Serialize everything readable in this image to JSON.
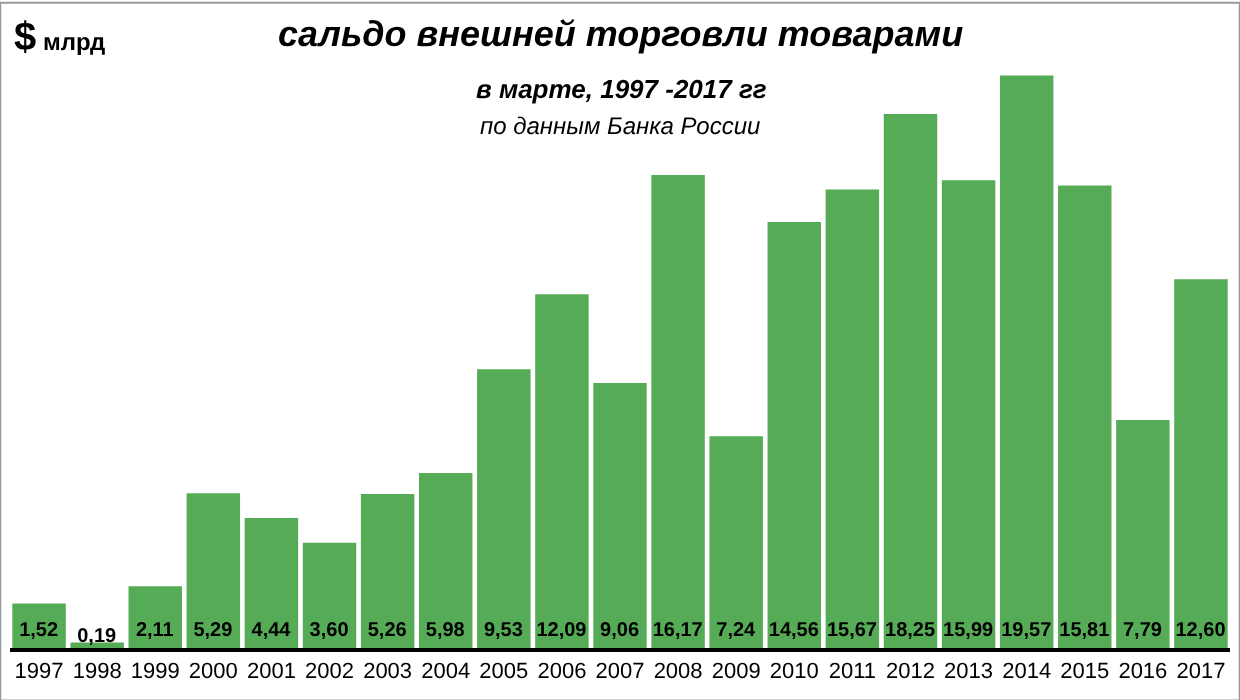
{
  "chart_data": {
    "type": "bar",
    "title": "сальдо внешней торговли товарами",
    "subtitle": "в марте, 1997 -2017 гг",
    "annotations": [
      "по данным Банка России"
    ],
    "ylabel": "$ млрд",
    "categories": [
      "1997",
      "1998",
      "1999",
      "2000",
      "2001",
      "2002",
      "2003",
      "2004",
      "2005",
      "2006",
      "2007",
      "2008",
      "2009",
      "2010",
      "2011",
      "2012",
      "2013",
      "2014",
      "2015",
      "2016",
      "2017"
    ],
    "values": [
      1.52,
      0.19,
      2.11,
      5.29,
      4.44,
      3.6,
      5.26,
      5.98,
      9.53,
      12.09,
      9.06,
      16.17,
      7.24,
      14.56,
      15.67,
      18.25,
      15.99,
      19.57,
      15.81,
      7.79,
      12.6
    ],
    "value_labels": [
      "1,52",
      "0,19",
      "2,11",
      "5,29",
      "4,44",
      "3,60",
      "5,26",
      "5,98",
      "9,53",
      "12,09",
      "9,06",
      "16,17",
      "7,24",
      "14,56",
      "15,67",
      "18,25",
      "15,99",
      "19,57",
      "15,81",
      "7,79",
      "12,60"
    ],
    "color": "#56ab56",
    "legend": false
  }
}
